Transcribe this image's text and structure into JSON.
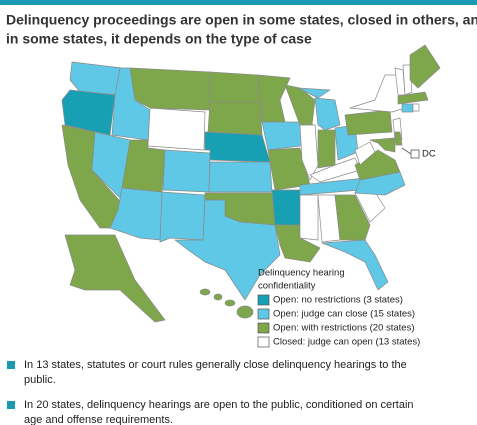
{
  "header": {
    "title": [
      "Delinquency proceedings are open in some states, closed in others, and",
      "in some states, it depends on the type of case"
    ]
  },
  "map": {
    "dc_label": "DC"
  },
  "legend": {
    "title": [
      "Delinquency hearing",
      "confidentiality"
    ],
    "items": [
      {
        "label": "Open: no restrictions (3 states)",
        "color": "#17a0b4"
      },
      {
        "label": "Open: judge can close (15 states)",
        "color": "#5fc8e6"
      },
      {
        "label": "Open: with restrictions (20 states)",
        "color": "#7ea64b"
      },
      {
        "label": "Closed: judge can open (13 states)",
        "color": "#ffffff"
      }
    ]
  },
  "notes": [
    {
      "lines": [
        "In 13 states, statutes or court rules generally close delinquency hearings to the",
        "public."
      ]
    },
    {
      "lines": [
        "In 20 states, delinquency hearings are open to the public, conditioned on certain",
        "age and offense requirements."
      ]
    }
  ]
}
